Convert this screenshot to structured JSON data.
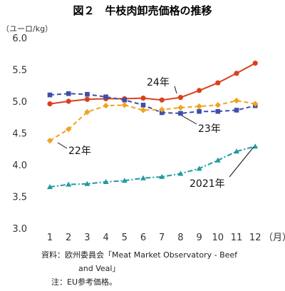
{
  "chart_data": {
    "type": "line",
    "title": "図２　牛枝肉卸売価格の推移",
    "y_unit": "（ユーロ/kg）",
    "x_unit": "（月）",
    "categories": [
      "1",
      "2",
      "3",
      "4",
      "5",
      "6",
      "7",
      "8",
      "9",
      "10",
      "11",
      "12"
    ],
    "ylim": [
      3.0,
      6.0
    ],
    "yticks": [
      "3.0",
      "3.5",
      "4.0",
      "4.5",
      "5.0",
      "5.5",
      "6.0"
    ],
    "grid": false,
    "series": [
      {
        "name": "24年",
        "color": "#d9411e",
        "marker": "circle",
        "dash": "solid",
        "values": [
          4.96,
          5.0,
          5.03,
          5.04,
          5.04,
          5.05,
          5.02,
          5.06,
          5.17,
          5.29,
          5.44,
          5.6
        ]
      },
      {
        "name": "23年",
        "color": "#3f4fa8",
        "marker": "square",
        "dash": "dash",
        "values": [
          5.1,
          5.12,
          5.11,
          5.07,
          5.02,
          4.94,
          4.82,
          4.81,
          4.84,
          4.84,
          4.86,
          4.93
        ]
      },
      {
        "name": "22年",
        "color": "#f0a31e",
        "marker": "diamond",
        "dash": "dash",
        "values": [
          4.38,
          4.56,
          4.83,
          4.93,
          4.94,
          4.86,
          4.87,
          4.9,
          4.92,
          4.94,
          5.01,
          4.96
        ]
      },
      {
        "name": "2021年",
        "color": "#1f9aa0",
        "marker": "triangle",
        "dash": "dashdot",
        "values": [
          3.65,
          3.69,
          3.7,
          3.73,
          3.75,
          3.79,
          3.81,
          3.86,
          3.94,
          4.07,
          4.21,
          4.29
        ]
      }
    ],
    "notes": [
      "資料：欧州委員会「Meat Market Observatory - Beef",
      "and Veal」",
      "注：EU参考価格。"
    ]
  }
}
